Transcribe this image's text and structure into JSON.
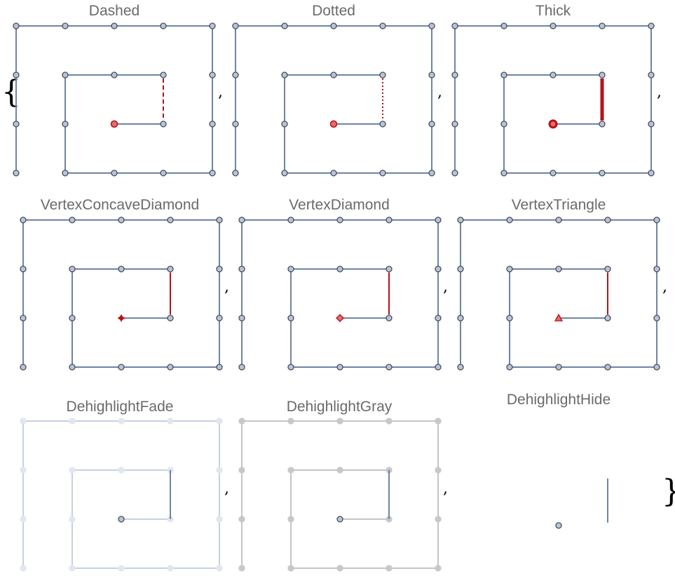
{
  "open_brace": "{",
  "close_brace": "}",
  "separator": ",",
  "colors": {
    "edge": "#6f84a4",
    "vertex_fill": "#b9c4d6",
    "vertex_stroke": "#454e5c",
    "highlight": "#b5121b",
    "highlight_fill": "#e86a6a",
    "fade": "#c6d0e2",
    "fade_vertex": "#e1e6ef",
    "gray": "#c5c5c5",
    "gray_vertex": "#c8c8c8"
  },
  "panels": [
    {
      "title": "Dashed",
      "style": "dashed"
    },
    {
      "title": "Dotted",
      "style": "dotted"
    },
    {
      "title": "Thick",
      "style": "thick"
    },
    {
      "title": "VertexConcaveDiamond",
      "style": "concave-diamond"
    },
    {
      "title": "VertexDiamond",
      "style": "diamond"
    },
    {
      "title": "VertexTriangle",
      "style": "triangle"
    },
    {
      "title": "DehighlightFade",
      "style": "fade"
    },
    {
      "title": "DehighlightGray",
      "style": "gray"
    },
    {
      "title": "DehighlightHide",
      "style": "hide"
    }
  ]
}
